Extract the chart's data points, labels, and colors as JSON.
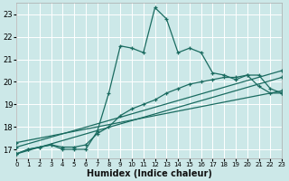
{
  "xlabel": "Humidex (Indice chaleur)",
  "background_color": "#cce8e8",
  "grid_color": "#ffffff",
  "line_color": "#1a6b60",
  "xlim": [
    0,
    23
  ],
  "ylim": [
    16.6,
    23.5
  ],
  "yticks": [
    17,
    18,
    19,
    20,
    21,
    22,
    23
  ],
  "xticks": [
    0,
    1,
    2,
    3,
    4,
    5,
    6,
    7,
    8,
    9,
    10,
    11,
    12,
    13,
    14,
    15,
    16,
    17,
    18,
    19,
    20,
    21,
    22,
    23
  ],
  "series_main_x": [
    0,
    1,
    2,
    3,
    4,
    5,
    6,
    7,
    8,
    9,
    10,
    11,
    12,
    13,
    14,
    15,
    16,
    17,
    18,
    19,
    20,
    21,
    22,
    23
  ],
  "series_main_y": [
    16.8,
    17.0,
    17.1,
    17.2,
    17.0,
    17.0,
    17.0,
    17.8,
    19.5,
    21.6,
    21.5,
    21.3,
    23.3,
    22.8,
    21.3,
    21.5,
    21.3,
    20.4,
    20.3,
    20.1,
    20.3,
    19.8,
    19.5,
    19.5
  ],
  "series_curve_x": [
    0,
    1,
    2,
    3,
    4,
    5,
    6,
    7,
    8,
    9,
    10,
    11,
    12,
    13,
    14,
    15,
    16,
    17,
    18,
    19,
    20,
    21,
    22,
    23
  ],
  "series_curve_y": [
    16.8,
    17.0,
    17.1,
    17.2,
    17.1,
    17.1,
    17.2,
    17.7,
    18.0,
    18.5,
    18.8,
    19.0,
    19.2,
    19.5,
    19.7,
    19.9,
    20.0,
    20.1,
    20.2,
    20.2,
    20.3,
    20.3,
    19.7,
    19.5
  ],
  "line1_x": [
    0,
    23
  ],
  "line1_y": [
    16.8,
    20.2
  ],
  "line2_x": [
    0,
    23
  ],
  "line2_y": [
    17.1,
    20.5
  ],
  "line3_x": [
    0,
    23
  ],
  "line3_y": [
    17.3,
    19.6
  ]
}
